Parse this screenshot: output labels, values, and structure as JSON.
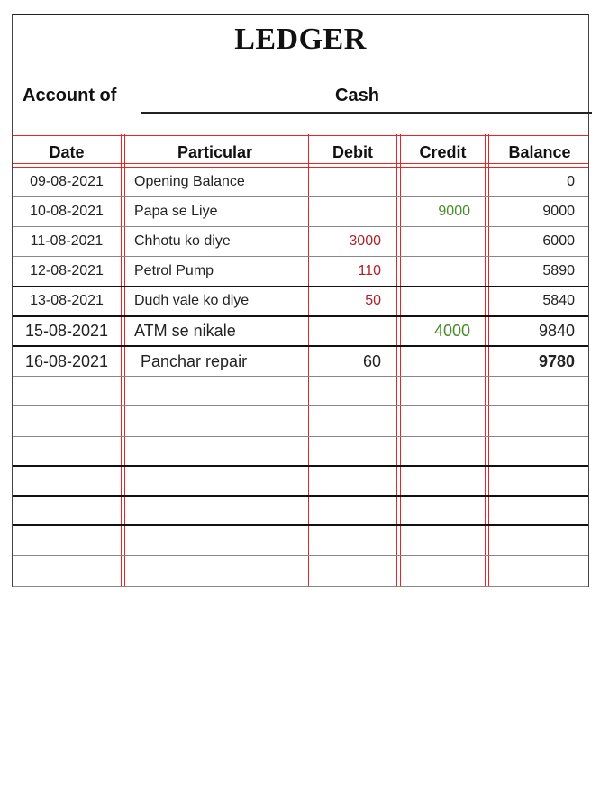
{
  "title": "LEDGER",
  "account": {
    "label": "Account of",
    "value": "Cash"
  },
  "columns": [
    "Date",
    "Particular",
    "Debit",
    "Credit",
    "Balance"
  ],
  "colors": {
    "rule": "#e22222",
    "debit": "#b0202a",
    "credit": "#4a8a2a"
  },
  "rows": [
    {
      "date": "09-08-2021",
      "particular": "Opening Balance",
      "debit": "",
      "credit": "",
      "balance": "0"
    },
    {
      "date": "10-08-2021",
      "particular": "Papa se Liye",
      "debit": "",
      "credit": "9000",
      "balance": "9000"
    },
    {
      "date": "11-08-2021",
      "particular": "Chhotu ko diye",
      "debit": "3000",
      "credit": "",
      "balance": "6000"
    },
    {
      "date": "12-08-2021",
      "particular": "Petrol Pump",
      "debit": "110",
      "credit": "",
      "balance": "5890"
    },
    {
      "date": "13-08-2021",
      "particular": "Dudh vale ko diye",
      "debit": "50",
      "credit": "",
      "balance": "5840"
    },
    {
      "date": "15-08-2021",
      "particular": "ATM se nikale",
      "debit": "",
      "credit": "4000",
      "balance": "9840"
    },
    {
      "date": "16-08-2021",
      "particular": "Panchar repair",
      "debit": "60",
      "credit": "",
      "balance": "9780"
    }
  ]
}
